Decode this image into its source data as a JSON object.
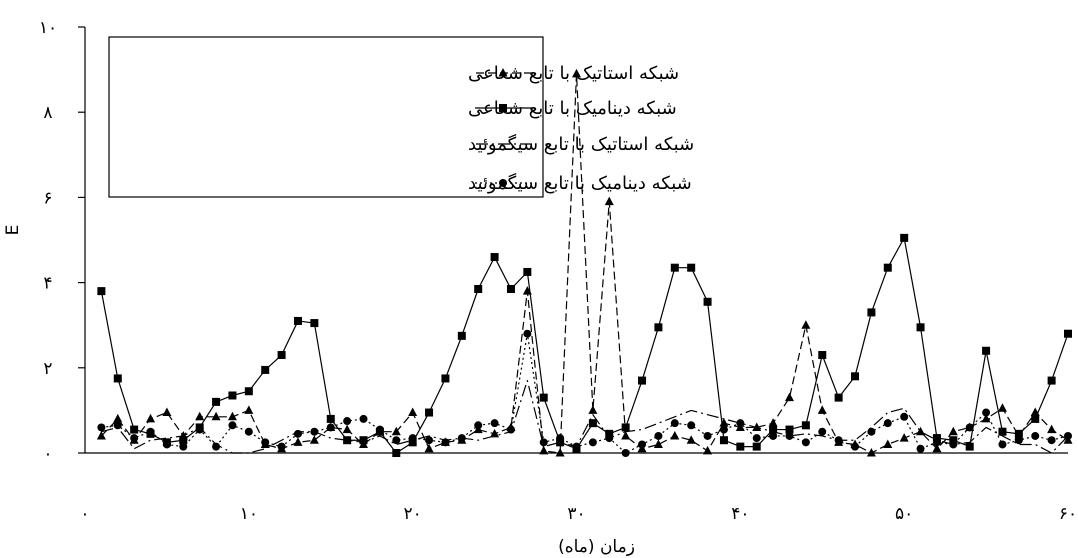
{
  "chart_data": {
    "type": "line",
    "title": "",
    "xlabel": "زمان (ماه)",
    "ylabel": "E",
    "xlim": [
      0,
      60
    ],
    "ylim": [
      0,
      10
    ],
    "x_ticks": [
      0,
      10,
      20,
      30,
      40,
      50,
      60
    ],
    "x_tick_labels": [
      "۰",
      "۱۰",
      "۲۰",
      "۳۰",
      "۴۰",
      "۵۰",
      "۶۰"
    ],
    "y_ticks": [
      0,
      2,
      4,
      6,
      8,
      10
    ],
    "y_tick_labels": [
      "۰",
      "۲",
      "۴",
      "۶",
      "۸",
      "۱۰"
    ],
    "grid": false,
    "legend_position": "top-left",
    "x": [
      1,
      2,
      3,
      4,
      5,
      6,
      7,
      8,
      9,
      10,
      11,
      12,
      13,
      14,
      15,
      16,
      17,
      18,
      19,
      20,
      21,
      22,
      23,
      24,
      25,
      26,
      27,
      28,
      29,
      30,
      31,
      32,
      33,
      34,
      35,
      36,
      37,
      38,
      39,
      40,
      41,
      42,
      43,
      44,
      45,
      46,
      47,
      48,
      49,
      50,
      51,
      52,
      53,
      54,
      55,
      56,
      57,
      58,
      59,
      60
    ],
    "series": [
      {
        "name": "شبکه استاتیک با تابع شعاعی",
        "line_style": "dashed",
        "marker": "triangle",
        "values": [
          0.4,
          0.8,
          0.3,
          0.8,
          0.95,
          0.4,
          0.85,
          0.85,
          0.85,
          1.0,
          0.2,
          0.1,
          0.25,
          0.3,
          0.6,
          0.55,
          0.2,
          0.5,
          0.5,
          0.95,
          0.1,
          0.25,
          0.3,
          0.55,
          0.45,
          0.6,
          3.8,
          0.05,
          0.0,
          8.9,
          1.0,
          5.9,
          0.4,
          0.1,
          0.2,
          0.4,
          0.3,
          0.05,
          0.7,
          0.6,
          0.6,
          0.7,
          1.3,
          3.0,
          1.0,
          0.25,
          0.2,
          0.0,
          0.2,
          0.35,
          0.5,
          0.1,
          0.5,
          0.6,
          0.8,
          1.05,
          0.4,
          0.95,
          0.55,
          0.3
        ]
      },
      {
        "name": "شبکه دینامیک با تابع شعاعی",
        "line_style": "solid",
        "marker": "square",
        "values": [
          3.8,
          1.75,
          0.55,
          0.45,
          0.25,
          0.3,
          0.6,
          1.2,
          1.35,
          1.45,
          1.95,
          2.3,
          3.1,
          3.05,
          0.8,
          0.3,
          0.3,
          0.5,
          0.0,
          0.25,
          0.95,
          1.75,
          2.75,
          3.85,
          4.6,
          3.85,
          4.25,
          1.3,
          0.25,
          0.1,
          0.7,
          0.45,
          0.6,
          1.7,
          2.95,
          4.35,
          4.35,
          3.55,
          0.3,
          0.15,
          0.15,
          0.55,
          0.55,
          0.65,
          2.3,
          1.3,
          1.8,
          3.3,
          4.35,
          5.05,
          2.95,
          0.35,
          0.3,
          0.15,
          2.4,
          0.5,
          0.45,
          0.8,
          1.7,
          2.8
        ]
      },
      {
        "name": "شبکه استاتیک با تابع سیگموئید",
        "line_style": "dash-dot",
        "marker": "none",
        "values": [
          0.5,
          0.6,
          0.1,
          0.3,
          0.35,
          0.4,
          0.6,
          0.2,
          0.0,
          0.0,
          0.1,
          0.3,
          0.5,
          0.5,
          0.35,
          0.3,
          0.25,
          0.4,
          0.2,
          0.3,
          0.4,
          0.3,
          0.35,
          0.3,
          0.4,
          0.5,
          1.7,
          0.15,
          0.25,
          0.15,
          0.9,
          0.35,
          0.5,
          0.55,
          0.7,
          0.85,
          1.0,
          0.9,
          0.8,
          0.7,
          0.6,
          0.5,
          0.4,
          0.45,
          0.4,
          0.3,
          0.3,
          0.6,
          0.95,
          1.05,
          0.5,
          0.3,
          0.2,
          0.25,
          0.6,
          0.4,
          0.2,
          0.2,
          0.0,
          0.4
        ]
      },
      {
        "name": "شبکه دینامیک با تابع سیگموئید",
        "line_style": "dotted",
        "marker": "circle",
        "values": [
          0.6,
          0.65,
          0.35,
          0.5,
          0.2,
          0.15,
          0.55,
          0.15,
          0.65,
          0.5,
          0.25,
          0.15,
          0.45,
          0.5,
          0.6,
          0.75,
          0.8,
          0.55,
          0.3,
          0.35,
          0.3,
          0.25,
          0.35,
          0.65,
          0.7,
          0.55,
          2.8,
          0.25,
          0.35,
          0.15,
          0.25,
          0.35,
          0.0,
          0.2,
          0.4,
          0.7,
          0.65,
          0.4,
          0.55,
          0.7,
          0.35,
          0.4,
          0.4,
          0.25,
          0.5,
          0.3,
          0.15,
          0.5,
          0.7,
          0.85,
          0.1,
          0.25,
          0.2,
          0.6,
          0.95,
          0.2,
          0.3,
          0.4,
          0.3,
          0.4
        ]
      }
    ]
  }
}
